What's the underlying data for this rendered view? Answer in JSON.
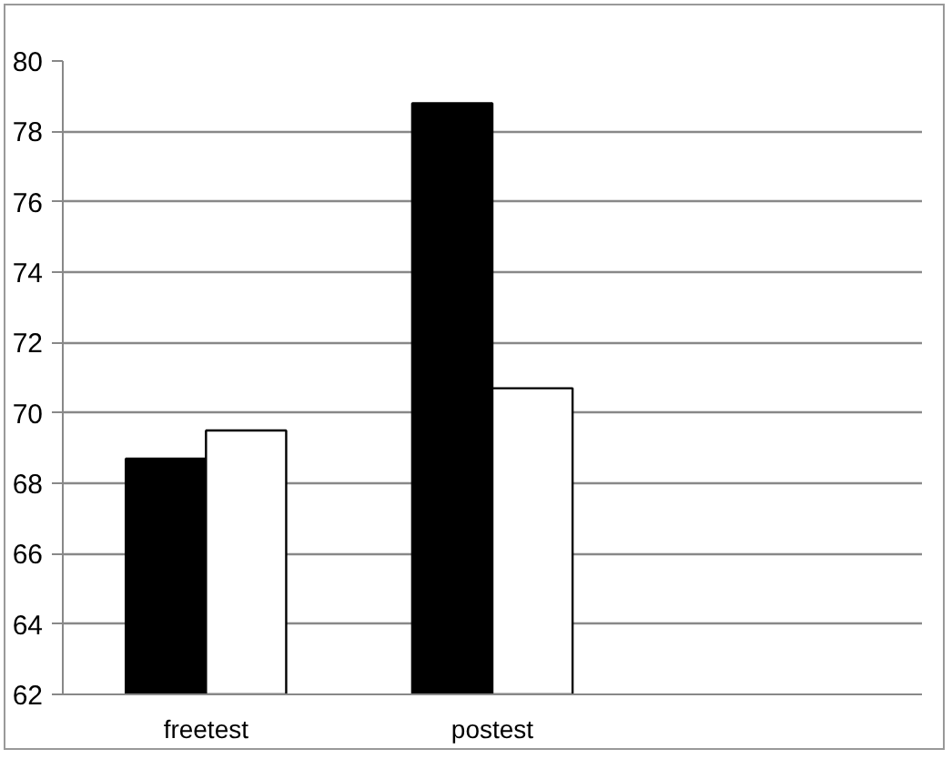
{
  "chart_data": {
    "type": "bar",
    "categories": [
      "freetest",
      "postest",
      null
    ],
    "series": [
      {
        "color": "#000000",
        "values": [
          68.7,
          78.8,
          null
        ]
      },
      {
        "color": "#ffffff",
        "values": [
          69.5,
          70.7,
          null
        ]
      }
    ],
    "ylim": [
      62,
      80
    ],
    "yticks": [
      62,
      64,
      66,
      68,
      70,
      72,
      74,
      76,
      78,
      80
    ],
    "grid": "y"
  }
}
